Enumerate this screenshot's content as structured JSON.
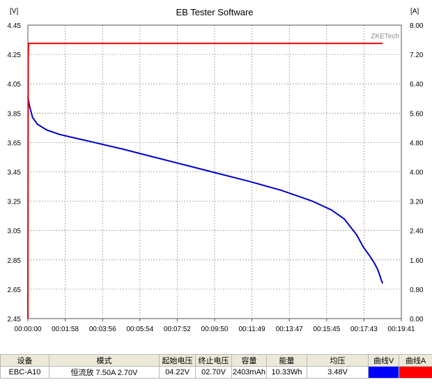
{
  "window": {
    "title": "EB Tester Software"
  },
  "chart_data": {
    "type": "line",
    "title": "EB Tester Software",
    "watermark": "ZKETech",
    "left_unit": "[V]",
    "right_unit": "[A]",
    "left_ticks": [
      "4.45",
      "4.25",
      "4.05",
      "3.85",
      "3.65",
      "3.45",
      "3.25",
      "3.05",
      "2.85",
      "2.65",
      "2.45"
    ],
    "right_ticks": [
      "8.00",
      "7.20",
      "6.40",
      "5.60",
      "4.80",
      "4.00",
      "3.20",
      "2.40",
      "1.60",
      "0.80",
      "0.00"
    ],
    "x_ticks": [
      "00:00:00",
      "00:01:58",
      "00:03:56",
      "00:05:54",
      "00:07:52",
      "00:09:50",
      "00:11:49",
      "00:13:47",
      "00:15:45",
      "00:17:43",
      "00:19:41"
    ],
    "ylim_voltage": [
      2.45,
      4.45
    ],
    "ylim_current": [
      0,
      8
    ],
    "xlim_seconds": [
      0,
      1181
    ],
    "grid": true,
    "series": [
      {
        "axis": "left",
        "color": "#0000c8",
        "x": [
          0,
          5,
          15,
          30,
          60,
          100,
          150,
          200,
          300,
          400,
          500,
          600,
          700,
          800,
          900,
          960,
          1000,
          1040,
          1060,
          1080,
          1095,
          1105,
          1112,
          1118,
          1122
        ],
        "y": [
          3.96,
          3.9,
          3.82,
          3.775,
          3.735,
          3.705,
          3.68,
          3.655,
          3.605,
          3.55,
          3.495,
          3.44,
          3.385,
          3.325,
          3.25,
          3.19,
          3.13,
          3.02,
          2.94,
          2.88,
          2.83,
          2.79,
          2.75,
          2.71,
          2.69
        ]
      },
      {
        "axis": "right",
        "color": "#e00000",
        "x": [
          0,
          1,
          2,
          3,
          1122
        ],
        "y": [
          0.0,
          7.1,
          7.5,
          7.5,
          7.5
        ]
      }
    ]
  },
  "table": {
    "headers": [
      "设备",
      "模式",
      "起始电压",
      "终止电压",
      "容量",
      "能量",
      "均压",
      "曲线V",
      "曲线A"
    ],
    "row": {
      "device": "EBC-A10",
      "mode": "恒流放  7.50A  2.70V",
      "start_voltage": "04.22V",
      "end_voltage": "02.70V",
      "capacity": "2403mAh",
      "energy": "10.33Wh",
      "avg_voltage": "3.48V",
      "curve_v_color": "#0000ff",
      "curve_a_color": "#ff0000"
    }
  }
}
